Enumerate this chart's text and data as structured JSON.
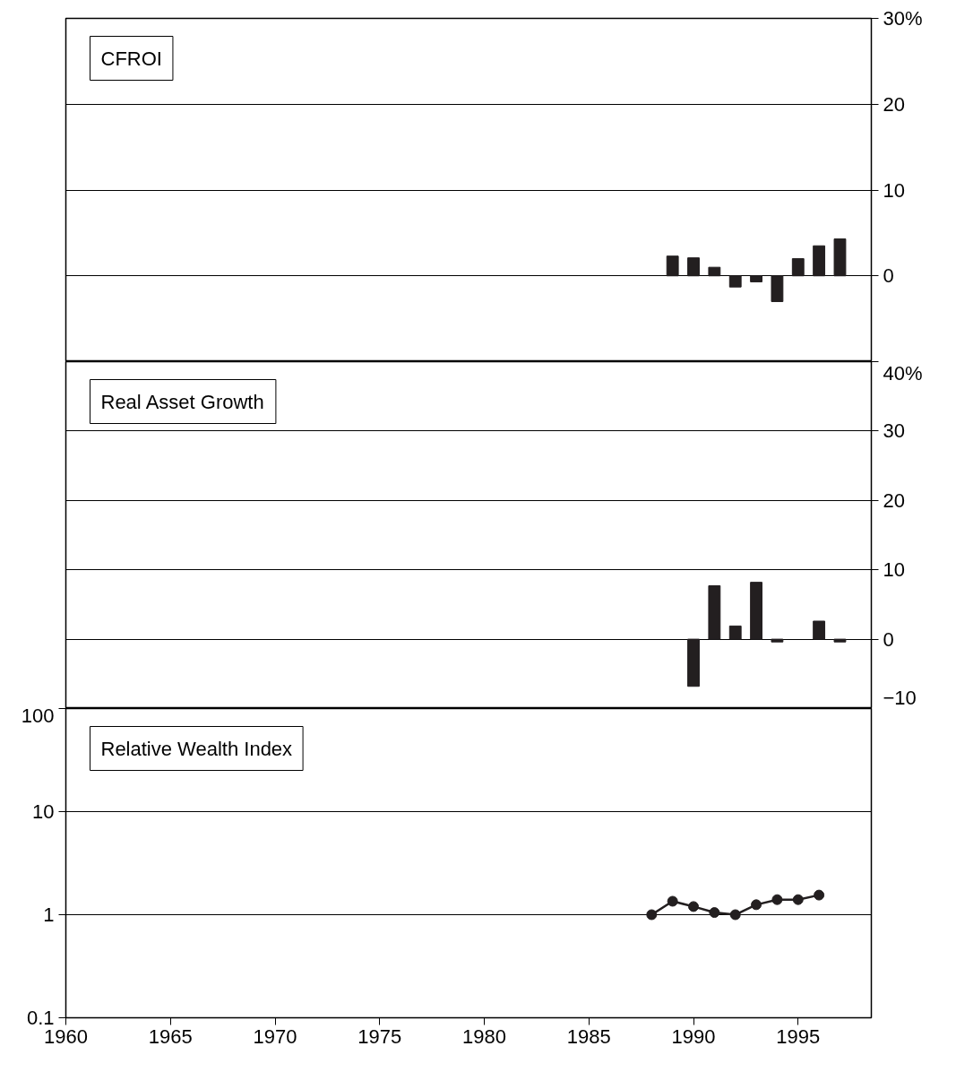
{
  "chart_data": [
    {
      "type": "bar",
      "title": "CFROI",
      "xlim": [
        1960,
        1998.5
      ],
      "tick_labels": "y",
      "grid": "y",
      "y2lim": [
        -10,
        30
      ],
      "y2ticks": [
        {
          "value": -10,
          "label": null
        },
        0,
        10,
        20,
        {
          "value": 30,
          "label": "30%"
        }
      ],
      "x": [
        1989,
        1990,
        1991,
        1992,
        1993,
        1994,
        1995,
        1996,
        1997
      ],
      "series": [
        {
          "axis": "y2",
          "color": "#231f20",
          "values": [
            2.3,
            2.1,
            1.0,
            -1.3,
            -0.7,
            -3.0,
            2.0,
            3.5,
            4.3
          ]
        }
      ]
    },
    {
      "type": "bar",
      "title": "Real Asset Growth",
      "xlim": [
        1960,
        1998.5
      ],
      "tick_labels": "y",
      "grid": "y",
      "y2lim": [
        -10,
        40
      ],
      "y2ticks": [
        {
          "value": -10,
          "label": "−10"
        },
        0,
        10,
        20,
        30,
        {
          "value": 40,
          "label": "40%"
        }
      ],
      "x": [
        1990,
        1991,
        1992,
        1993,
        1994,
        1995,
        1996,
        1997
      ],
      "series": [
        {
          "axis": "y2",
          "color": "#231f20",
          "values": [
            -6.8,
            7.7,
            1.9,
            8.2,
            -0.4,
            null,
            2.6,
            -0.4
          ]
        }
      ]
    },
    {
      "type": "line",
      "title": "Relative Wealth Index",
      "xlim": [
        1960,
        1998.5
      ],
      "xticks": [
        1960,
        1965,
        1970,
        1975,
        1980,
        1985,
        1990,
        1995
      ],
      "log": true,
      "ylim": [
        0.1,
        100
      ],
      "yticks": [
        0.1,
        1,
        10,
        100
      ],
      "grid": "y",
      "marker": "circle",
      "line_style": "solid",
      "x": [
        1988,
        1989,
        1990,
        1991,
        1992,
        1993,
        1994,
        1995,
        1996
      ],
      "series": [
        {
          "color": "#231f20",
          "values": [
            1.0,
            1.35,
            1.2,
            1.05,
            1.0,
            1.25,
            1.4,
            1.4,
            1.55
          ]
        }
      ]
    }
  ]
}
